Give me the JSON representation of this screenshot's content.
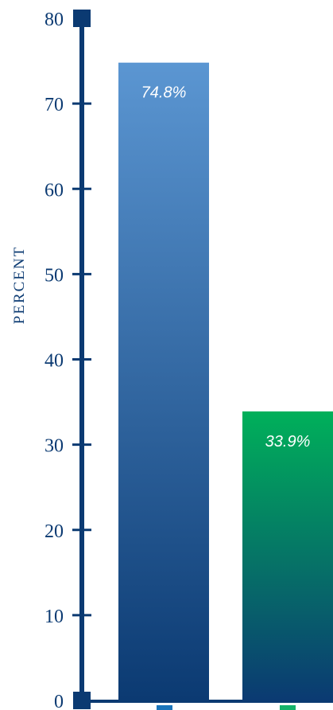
{
  "chart_data": {
    "type": "bar",
    "title": "",
    "xlabel": "",
    "ylabel": "PERCENT",
    "ylim": [
      0,
      80
    ],
    "yticks": [
      0,
      10,
      20,
      30,
      40,
      50,
      60,
      70,
      80
    ],
    "categories": [
      "",
      ""
    ],
    "values": [
      74.8,
      33.9
    ],
    "value_labels": [
      "74.8%",
      "33.9%"
    ],
    "bar_top_colors": [
      "#5b96d2",
      "#00b05a"
    ],
    "bar_bottom_color": "#0b3a72",
    "marker_colors": [
      "#1b75bb",
      "#15b36a"
    ],
    "axis_color": "#0b3a72",
    "text_color": "#0b3a72",
    "value_label_color": "#ffffff",
    "grid": false,
    "legend": "none"
  }
}
